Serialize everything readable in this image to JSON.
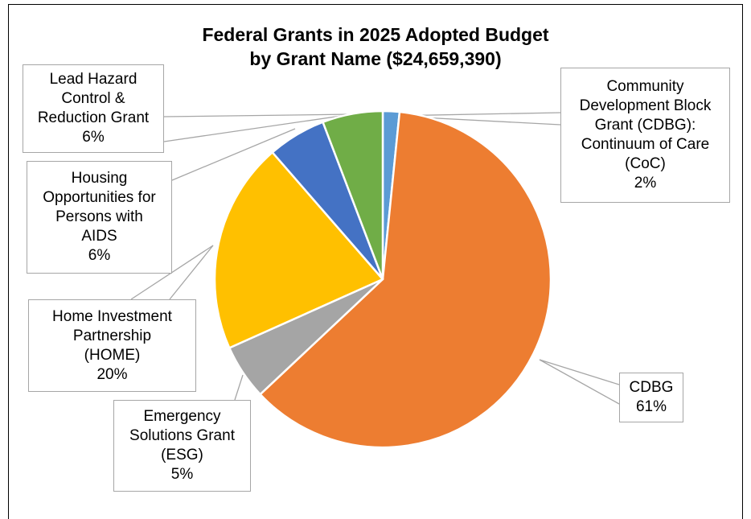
{
  "chart_data": {
    "type": "pie",
    "title_lines": [
      "Federal Grants in 2025 Adopted Budget",
      "by Grant Name ($24,659,390)"
    ],
    "slices": [
      {
        "name": "Community Development Block Grant (CDBG): Continuum of Care (CoC)",
        "label": "Community\nDevelopment Block\nGrant (CDBG):\nContinuum of Care\n(CoC)",
        "pct_label": "2%",
        "value": 1.6,
        "color": "#5b9bd5"
      },
      {
        "name": "CDBG",
        "label": "CDBG",
        "pct_label": "61%",
        "value": 61.4,
        "color": "#ed7d31"
      },
      {
        "name": "Emergency Solutions Grant (ESG)",
        "label": "Emergency\nSolutions Grant\n(ESG)",
        "pct_label": "5%",
        "value": 5.3,
        "color": "#a5a5a5"
      },
      {
        "name": "Home Investment Partnership (HOME)",
        "label": "Home Investment\nPartnership\n(HOME)",
        "pct_label": "20%",
        "value": 20.3,
        "color": "#ffc000"
      },
      {
        "name": "Housing Opportunities for Persons with AIDS",
        "label": "Housing\nOpportunities for\nPersons with\nAIDS",
        "pct_label": "6%",
        "value": 5.6,
        "color": "#4472c4"
      },
      {
        "name": "Lead Hazard Control & Reduction Grant",
        "label": "Lead Hazard\nControl &\nReduction Grant",
        "pct_label": "6%",
        "value": 5.8,
        "color": "#70ad47"
      }
    ]
  }
}
